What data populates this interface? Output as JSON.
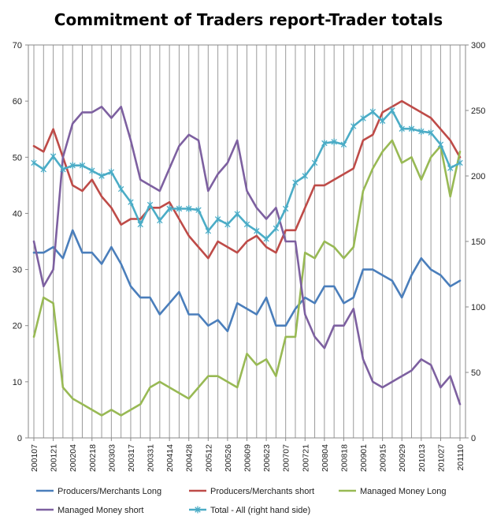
{
  "chart_data": {
    "type": "line",
    "title": "Commitment of Traders report-Trader totals",
    "ylim_left": [
      0,
      70
    ],
    "yticks_left": [
      0,
      10,
      20,
      30,
      40,
      50,
      60,
      70
    ],
    "ylim_right": [
      0,
      300
    ],
    "yticks_right": [
      0,
      50,
      100,
      150,
      200,
      250,
      300
    ],
    "grid": "vertical",
    "legend_position": "bottom",
    "tick_labels": [
      "200107",
      "200121",
      "200204",
      "200218",
      "200303",
      "200317",
      "200331",
      "200414",
      "200428",
      "200512",
      "200526",
      "200609",
      "200623",
      "200707",
      "200721",
      "200804",
      "200818",
      "200901",
      "200915",
      "200929",
      "201013",
      "201027",
      "201110"
    ],
    "series": [
      {
        "name": "Producers/Merchants Long",
        "axis": "left",
        "color": "#4a7ebb",
        "marker": "none",
        "values": [
          33,
          33,
          34,
          32,
          37,
          33,
          33,
          31,
          34,
          31,
          27,
          25,
          25,
          22,
          24,
          26,
          22,
          22,
          20,
          21,
          19,
          24,
          23,
          22,
          25,
          20,
          20,
          23,
          25,
          24,
          27,
          27,
          24,
          25,
          30,
          30,
          29,
          28,
          25,
          29,
          32,
          30,
          29,
          27,
          28
        ]
      },
      {
        "name": "Producers/Merchants short",
        "axis": "left",
        "color": "#be4b48",
        "marker": "none",
        "values": [
          52,
          51,
          55,
          50,
          45,
          44,
          46,
          43,
          41,
          38,
          39,
          39,
          41,
          41,
          42,
          39,
          36,
          34,
          32,
          35,
          34,
          33,
          35,
          36,
          34,
          33,
          37,
          37,
          41,
          45,
          45,
          46,
          47,
          48,
          53,
          54,
          58,
          59,
          60,
          59,
          58,
          57,
          55,
          53,
          50
        ]
      },
      {
        "name": "Managed Money Long",
        "axis": "left",
        "color": "#98b954",
        "marker": "none",
        "values": [
          18,
          25,
          24,
          9,
          7,
          6,
          5,
          4,
          5,
          4,
          5,
          6,
          9,
          10,
          9,
          8,
          7,
          9,
          11,
          11,
          10,
          9,
          15,
          13,
          14,
          11,
          18,
          18,
          33,
          32,
          35,
          34,
          32,
          34,
          44,
          48,
          51,
          53,
          49,
          50,
          46,
          50,
          52,
          43,
          51
        ]
      },
      {
        "name": "Managed Money short",
        "axis": "left",
        "color": "#7d60a0",
        "marker": "none",
        "values": [
          35,
          27,
          30,
          50,
          56,
          58,
          58,
          59,
          57,
          59,
          53,
          46,
          45,
          44,
          48,
          52,
          54,
          53,
          44,
          47,
          49,
          53,
          44,
          41,
          39,
          41,
          35,
          35,
          22,
          18,
          16,
          20,
          20,
          23,
          14,
          10,
          9,
          10,
          11,
          12,
          14,
          13,
          9,
          11,
          6
        ]
      },
      {
        "name": "Total - All (right hand side)",
        "axis": "right",
        "color": "#4bacc6",
        "marker": "star",
        "values": [
          210,
          205,
          215,
          205,
          208,
          208,
          204,
          200,
          203,
          190,
          180,
          163,
          178,
          166,
          175,
          175,
          175,
          174,
          158,
          167,
          163,
          171,
          163,
          158,
          152,
          160,
          175,
          195,
          200,
          210,
          225,
          226,
          224,
          238,
          244,
          249,
          242,
          250,
          236,
          236,
          234,
          233,
          224,
          206,
          210
        ]
      }
    ]
  }
}
